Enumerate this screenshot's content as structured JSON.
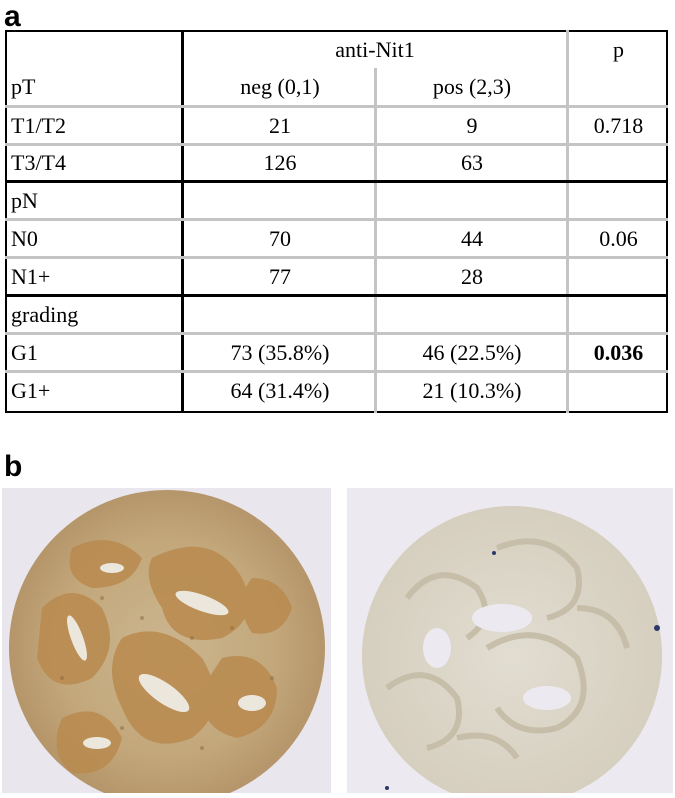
{
  "panel_a_label": "a",
  "panel_b_label": "b",
  "table": {
    "header": {
      "group": "anti-Nit1",
      "p": "p",
      "row_label": "pT",
      "neg": "neg (0,1)",
      "pos": "pos (2,3)"
    },
    "rows": [
      {
        "label": "T1/T2",
        "neg": "21",
        "pos": "9",
        "p": "0.718"
      },
      {
        "label": "T3/T4",
        "neg": "126",
        "pos": "63",
        "p": ""
      },
      {
        "label": "pN",
        "neg": "",
        "pos": "",
        "p": ""
      },
      {
        "label": "N0",
        "neg": "70",
        "pos": "44",
        "p": "0.06"
      },
      {
        "label": "N1+",
        "neg": "77",
        "pos": "28",
        "p": ""
      },
      {
        "label": "grading",
        "neg": "",
        "pos": "",
        "p": ""
      },
      {
        "label": "G1",
        "neg": "73 (35.8%)",
        "pos": "46 (22.5%)",
        "p": "0.036"
      },
      {
        "label": "G1+",
        "neg": "64 (31.4%)",
        "pos": "21 (10.3%)",
        "p": ""
      }
    ]
  },
  "colors": {
    "stain_brown": "#c49a5e",
    "background_light": "#e9e6ee",
    "pale_tissue": "#d8d3c6"
  }
}
